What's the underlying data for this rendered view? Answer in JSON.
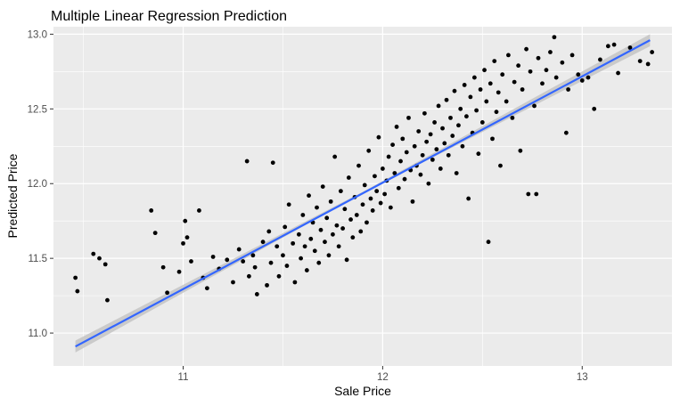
{
  "chart_data": {
    "type": "scatter",
    "title": "Multiple Linear Regression Prediction",
    "xlabel": "Sale Price",
    "ylabel": "Predicted Price",
    "xlim": [
      10.35,
      13.45
    ],
    "ylim": [
      10.78,
      13.05
    ],
    "x_ticks": [
      11,
      12,
      13
    ],
    "x_tick_labels": [
      "11",
      "12",
      "13"
    ],
    "y_ticks": [
      11.0,
      11.5,
      12.0,
      12.5,
      13.0
    ],
    "y_tick_labels": [
      "11.0",
      "11.5",
      "12.0",
      "12.5",
      "13.0"
    ],
    "grid": true,
    "legend": "none",
    "colors": {
      "panel": "#ebebeb",
      "grid": "#ffffff",
      "points": "#000000",
      "fit_line": "#3366ff",
      "confidence_band": "#c4c4c4"
    },
    "fit_line": {
      "x": [
        10.46,
        13.34
      ],
      "y": [
        10.91,
        12.96
      ]
    },
    "confidence_band": {
      "x": [
        10.46,
        11.9,
        13.34
      ],
      "lower": [
        10.87,
        11.935,
        12.92
      ],
      "upper": [
        10.95,
        11.945,
        13.0
      ]
    },
    "points": [
      [
        10.46,
        11.37
      ],
      [
        10.47,
        11.28
      ],
      [
        10.55,
        11.53
      ],
      [
        10.58,
        11.5
      ],
      [
        10.61,
        11.46
      ],
      [
        10.62,
        11.22
      ],
      [
        10.84,
        11.82
      ],
      [
        10.86,
        11.67
      ],
      [
        10.9,
        11.44
      ],
      [
        10.92,
        11.27
      ],
      [
        10.98,
        11.41
      ],
      [
        11.0,
        11.6
      ],
      [
        11.01,
        11.75
      ],
      [
        11.02,
        11.64
      ],
      [
        11.04,
        11.48
      ],
      [
        11.08,
        11.82
      ],
      [
        11.1,
        11.37
      ],
      [
        11.12,
        11.3
      ],
      [
        11.15,
        11.51
      ],
      [
        11.18,
        11.43
      ],
      [
        11.22,
        11.49
      ],
      [
        11.25,
        11.34
      ],
      [
        11.28,
        11.56
      ],
      [
        11.3,
        11.48
      ],
      [
        11.32,
        12.15
      ],
      [
        11.33,
        11.38
      ],
      [
        11.35,
        11.52
      ],
      [
        11.36,
        11.44
      ],
      [
        11.37,
        11.26
      ],
      [
        11.4,
        11.61
      ],
      [
        11.42,
        11.32
      ],
      [
        11.43,
        11.68
      ],
      [
        11.44,
        11.47
      ],
      [
        11.45,
        12.14
      ],
      [
        11.47,
        11.58
      ],
      [
        11.48,
        11.38
      ],
      [
        11.5,
        11.52
      ],
      [
        11.51,
        11.71
      ],
      [
        11.52,
        11.45
      ],
      [
        11.53,
        11.86
      ],
      [
        11.55,
        11.6
      ],
      [
        11.56,
        11.34
      ],
      [
        11.58,
        11.66
      ],
      [
        11.59,
        11.5
      ],
      [
        11.6,
        11.79
      ],
      [
        11.61,
        11.58
      ],
      [
        11.62,
        11.42
      ],
      [
        11.63,
        11.92
      ],
      [
        11.64,
        11.63
      ],
      [
        11.65,
        11.74
      ],
      [
        11.66,
        11.55
      ],
      [
        11.67,
        11.84
      ],
      [
        11.68,
        11.47
      ],
      [
        11.69,
        11.69
      ],
      [
        11.7,
        11.98
      ],
      [
        11.71,
        11.61
      ],
      [
        11.72,
        11.77
      ],
      [
        11.73,
        11.52
      ],
      [
        11.74,
        11.88
      ],
      [
        11.75,
        11.66
      ],
      [
        11.76,
        12.18
      ],
      [
        11.77,
        11.72
      ],
      [
        11.78,
        11.58
      ],
      [
        11.79,
        11.95
      ],
      [
        11.8,
        11.7
      ],
      [
        11.81,
        11.83
      ],
      [
        11.82,
        11.49
      ],
      [
        11.83,
        12.04
      ],
      [
        11.84,
        11.76
      ],
      [
        11.85,
        11.64
      ],
      [
        11.86,
        11.91
      ],
      [
        11.87,
        11.79
      ],
      [
        11.88,
        12.12
      ],
      [
        11.89,
        11.68
      ],
      [
        11.9,
        11.86
      ],
      [
        11.91,
        11.99
      ],
      [
        11.92,
        11.74
      ],
      [
        11.93,
        12.22
      ],
      [
        11.94,
        11.9
      ],
      [
        11.95,
        11.82
      ],
      [
        11.96,
        12.05
      ],
      [
        11.97,
        11.95
      ],
      [
        11.98,
        12.31
      ],
      [
        11.99,
        11.87
      ],
      [
        12.0,
        12.1
      ],
      [
        12.01,
        11.93
      ],
      [
        12.02,
        12.02
      ],
      [
        12.03,
        12.18
      ],
      [
        12.04,
        11.84
      ],
      [
        12.05,
        12.26
      ],
      [
        12.06,
        12.07
      ],
      [
        12.07,
        12.38
      ],
      [
        12.08,
        11.97
      ],
      [
        12.09,
        12.15
      ],
      [
        12.1,
        12.3
      ],
      [
        12.11,
        12.03
      ],
      [
        12.12,
        12.21
      ],
      [
        12.13,
        12.44
      ],
      [
        12.14,
        12.09
      ],
      [
        12.15,
        11.88
      ],
      [
        12.16,
        12.25
      ],
      [
        12.17,
        12.12
      ],
      [
        12.18,
        12.35
      ],
      [
        12.19,
        12.06
      ],
      [
        12.2,
        12.19
      ],
      [
        12.21,
        12.47
      ],
      [
        12.22,
        12.28
      ],
      [
        12.23,
        12.0
      ],
      [
        12.24,
        12.33
      ],
      [
        12.25,
        12.16
      ],
      [
        12.26,
        12.41
      ],
      [
        12.27,
        12.23
      ],
      [
        12.28,
        12.52
      ],
      [
        12.29,
        12.1
      ],
      [
        12.3,
        12.37
      ],
      [
        12.31,
        12.27
      ],
      [
        12.32,
        12.56
      ],
      [
        12.33,
        12.19
      ],
      [
        12.34,
        12.44
      ],
      [
        12.35,
        12.32
      ],
      [
        12.36,
        12.62
      ],
      [
        12.37,
        12.07
      ],
      [
        12.38,
        12.39
      ],
      [
        12.39,
        12.5
      ],
      [
        12.4,
        12.25
      ],
      [
        12.41,
        12.66
      ],
      [
        12.42,
        12.45
      ],
      [
        12.43,
        11.9
      ],
      [
        12.44,
        12.58
      ],
      [
        12.45,
        12.34
      ],
      [
        12.46,
        12.71
      ],
      [
        12.47,
        12.49
      ],
      [
        12.48,
        12.2
      ],
      [
        12.49,
        12.63
      ],
      [
        12.5,
        12.41
      ],
      [
        12.51,
        12.76
      ],
      [
        12.52,
        12.55
      ],
      [
        12.53,
        11.61
      ],
      [
        12.54,
        12.67
      ],
      [
        12.55,
        12.3
      ],
      [
        12.56,
        12.82
      ],
      [
        12.57,
        12.48
      ],
      [
        12.58,
        12.61
      ],
      [
        12.59,
        12.12
      ],
      [
        12.6,
        12.73
      ],
      [
        12.62,
        12.55
      ],
      [
        12.63,
        12.86
      ],
      [
        12.65,
        12.44
      ],
      [
        12.66,
        12.68
      ],
      [
        12.68,
        12.79
      ],
      [
        12.69,
        12.22
      ],
      [
        12.7,
        12.63
      ],
      [
        12.72,
        12.9
      ],
      [
        12.73,
        11.93
      ],
      [
        12.74,
        12.75
      ],
      [
        12.76,
        12.52
      ],
      [
        12.77,
        11.93
      ],
      [
        12.78,
        12.84
      ],
      [
        12.8,
        12.67
      ],
      [
        12.82,
        12.76
      ],
      [
        12.84,
        12.88
      ],
      [
        12.86,
        12.98
      ],
      [
        12.87,
        12.71
      ],
      [
        12.9,
        12.81
      ],
      [
        12.92,
        12.34
      ],
      [
        12.93,
        12.63
      ],
      [
        12.95,
        12.86
      ],
      [
        12.98,
        12.73
      ],
      [
        13.0,
        12.69
      ],
      [
        13.03,
        12.71
      ],
      [
        13.06,
        12.5
      ],
      [
        13.09,
        12.83
      ],
      [
        13.13,
        12.92
      ],
      [
        13.16,
        12.93
      ],
      [
        13.18,
        12.74
      ],
      [
        13.24,
        12.91
      ],
      [
        13.29,
        12.82
      ],
      [
        13.33,
        12.8
      ],
      [
        13.35,
        12.88
      ]
    ]
  }
}
